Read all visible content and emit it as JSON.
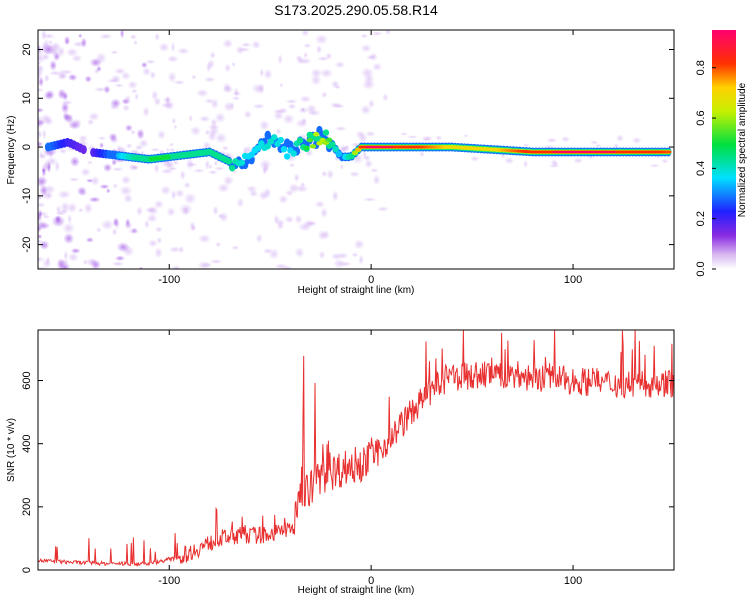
{
  "title": "S173.2025.290.05.58.R14",
  "colors": {
    "snr_line": "#e83030",
    "frame": "#000000"
  },
  "chart_data": [
    {
      "type": "heatmap",
      "xlabel": "Height of straight line (km)",
      "ylabel": "Frequency (Hz)",
      "xlim": [
        -165,
        150
      ],
      "ylim": [
        -25,
        24
      ],
      "xticks": [
        -100,
        0,
        100
      ],
      "yticks": [
        -20,
        -10,
        0,
        10,
        20
      ],
      "grid": false,
      "colorbar": {
        "label": "Normalized spectral amplitude",
        "range": [
          0.0,
          0.95
        ],
        "ticks": [
          0.0,
          0.2,
          0.4,
          0.6,
          0.8
        ],
        "colormap": "rainbow (white-violet-blue-cyan-green-yellow-red-magenta)"
      },
      "ridge": {
        "x": [
          -160,
          -150,
          -140,
          -120,
          -110,
          -100,
          -90,
          -80,
          -70,
          -60,
          -50,
          -40,
          -30,
          -25,
          -20,
          -15,
          -10,
          -5,
          0,
          20,
          40,
          60,
          80,
          100,
          120,
          148
        ],
        "freq_hz": [
          0,
          1,
          -1,
          -2,
          -2.5,
          -2,
          -1.5,
          -1,
          -3,
          -2,
          2,
          -1,
          1.5,
          2,
          1,
          -2,
          -2,
          0,
          0,
          0,
          0,
          -0.5,
          -1,
          -1,
          -1,
          -1
        ],
        "amplitude": [
          0.3,
          0.2,
          0.15,
          0.4,
          0.5,
          0.5,
          0.45,
          0.5,
          0.45,
          0.35,
          0.4,
          0.35,
          0.55,
          0.7,
          0.5,
          0.3,
          0.45,
          0.85,
          0.95,
          0.85,
          0.7,
          0.7,
          0.85,
          0.95,
          0.9,
          0.8
        ]
      }
    },
    {
      "type": "line",
      "xlabel": "Height of straight line (km)",
      "ylabel": "SNR (10 * v/v)",
      "xlim": [
        -165,
        150
      ],
      "ylim": [
        0,
        760
      ],
      "xticks": [
        -100,
        0,
        100
      ],
      "yticks": [
        0,
        200,
        400,
        600
      ],
      "grid": false,
      "series": [
        {
          "x": [
            -165,
            -150,
            -130,
            -110,
            -95,
            -85,
            -75,
            -65,
            -55,
            -45,
            -38,
            -35,
            -30,
            -25,
            -20,
            -10,
            0,
            10,
            20,
            30,
            40,
            60,
            80,
            100,
            120,
            150
          ],
          "y": [
            30,
            25,
            20,
            20,
            40,
            70,
            100,
            110,
            110,
            120,
            140,
            250,
            260,
            300,
            310,
            330,
            350,
            420,
            500,
            570,
            610,
            620,
            610,
            600,
            590,
            590
          ]
        }
      ]
    }
  ]
}
